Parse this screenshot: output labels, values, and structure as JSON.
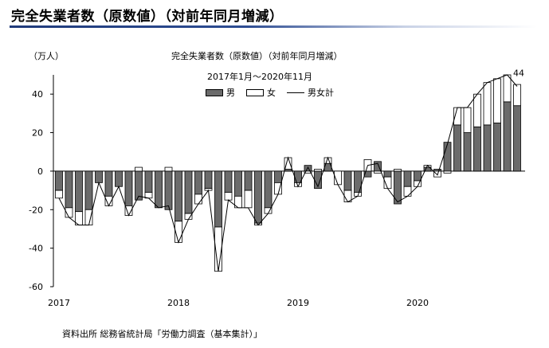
{
  "page": {
    "title": "完全失業者数（原数値）（対前年同月増減）",
    "source": "資料出所 総務省統計局「労働力調査（基本集計）」"
  },
  "chart_data": {
    "type": "bar",
    "title": "完全失業者数（原数値）（対前年同月増減）",
    "subtitle": "2017年1月～2020年11月",
    "ylabel": "（万人）",
    "ylim": [
      -60,
      50
    ],
    "yticks": [
      -60,
      -40,
      -20,
      0,
      20,
      40
    ],
    "xtick_labels": [
      "2017",
      "2018",
      "2019",
      "2020"
    ],
    "xtick_months": [
      "2017-01",
      "2018-01",
      "2019-01",
      "2020-01"
    ],
    "grid": false,
    "legend": [
      "男",
      "女",
      "男女計"
    ],
    "legend_position": "top-center",
    "annotations": [
      {
        "month": "2020-11",
        "text": "44"
      }
    ],
    "colors": {
      "male": "#6b6b6b",
      "female": "#ffffff",
      "total_line": "#000000"
    },
    "x": [
      "2017-01",
      "2017-02",
      "2017-03",
      "2017-04",
      "2017-05",
      "2017-06",
      "2017-07",
      "2017-08",
      "2017-09",
      "2017-10",
      "2017-11",
      "2017-12",
      "2018-01",
      "2018-02",
      "2018-03",
      "2018-04",
      "2018-05",
      "2018-06",
      "2018-07",
      "2018-08",
      "2018-09",
      "2018-10",
      "2018-11",
      "2018-12",
      "2019-01",
      "2019-02",
      "2019-03",
      "2019-04",
      "2019-05",
      "2019-06",
      "2019-07",
      "2019-08",
      "2019-09",
      "2019-10",
      "2019-11",
      "2019-12",
      "2020-01",
      "2020-02",
      "2020-03",
      "2020-04",
      "2020-05",
      "2020-06",
      "2020-07",
      "2020-08",
      "2020-09",
      "2020-10",
      "2020-11"
    ],
    "series": [
      {
        "name": "男",
        "values": [
          -10,
          -19,
          -21,
          -20,
          -6,
          -13,
          -8,
          -18,
          -15,
          -11,
          -19,
          -20,
          -26,
          -22,
          -12,
          -9,
          -29,
          -11,
          -13,
          -10,
          -27,
          -19,
          -6,
          1,
          -6,
          3,
          -9,
          4,
          0,
          -10,
          -11,
          -3,
          5,
          -3,
          -17,
          -8,
          -5,
          2,
          1,
          15,
          24,
          20,
          23,
          24,
          25,
          36,
          34
        ]
      },
      {
        "name": "女",
        "values": [
          -4,
          -5,
          -7,
          -8,
          0,
          -5,
          0,
          -5,
          2,
          -3,
          0,
          2,
          -11,
          -3,
          -5,
          -1,
          -23,
          -4,
          -6,
          -9,
          -1,
          -3,
          -6,
          6,
          -2,
          -1,
          1,
          3,
          -7,
          -6,
          -2,
          6,
          -1,
          -6,
          1,
          -5,
          -3,
          1,
          -3,
          -1,
          9,
          13,
          17,
          22,
          23,
          14,
          11
        ]
      },
      {
        "name": "男女計",
        "values": [
          -14,
          -24,
          -28,
          -28,
          -6,
          -18,
          -8,
          -23,
          -13,
          -14,
          -19,
          -18,
          -37,
          -25,
          -17,
          -10,
          -52,
          -15,
          -19,
          -19,
          -28,
          -22,
          -12,
          7,
          -8,
          2,
          -8,
          7,
          -7,
          -16,
          -13,
          3,
          4,
          -9,
          -16,
          -13,
          -8,
          3,
          -2,
          14,
          33,
          33,
          40,
          46,
          48,
          50,
          44
        ]
      }
    ]
  }
}
